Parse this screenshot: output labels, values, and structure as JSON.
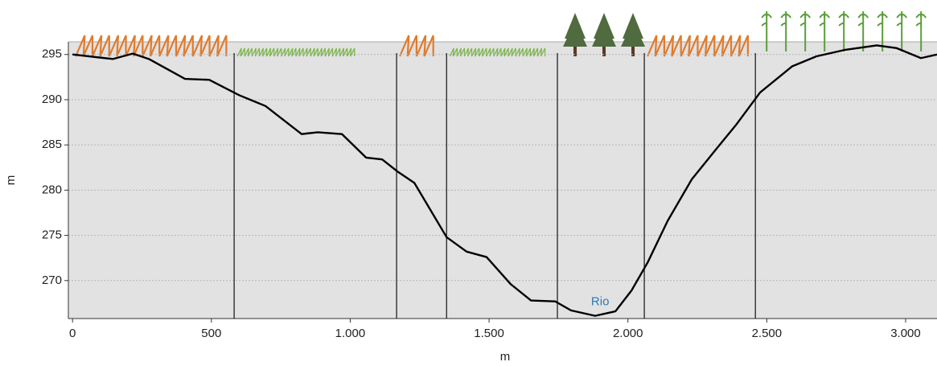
{
  "chart_data": {
    "type": "line",
    "x": [
      0,
      145,
      217,
      275,
      405,
      492,
      600,
      695,
      825,
      883,
      970,
      1057,
      1115,
      1173,
      1231,
      1347,
      1419,
      1491,
      1578,
      1651,
      1738,
      1795,
      1882,
      1955,
      2013,
      2071,
      2143,
      2230,
      2317,
      2389,
      2476,
      2592,
      2679,
      2780,
      2896,
      2968,
      3055,
      3113
    ],
    "series": [
      {
        "color": "#000000",
        "values": [
          295,
          294.5,
          295.1,
          294.5,
          292.3,
          292.2,
          290.5,
          289.3,
          286.2,
          286.4,
          286.2,
          283.6,
          283.4,
          282,
          280.8,
          274.8,
          273.2,
          272.6,
          269.6,
          267.8,
          267.7,
          266.7,
          266.1,
          266.6,
          268.9,
          272,
          276.6,
          281.2,
          284.5,
          287.2,
          290.8,
          293.7,
          294.8,
          295.5,
          296,
          295.7,
          294.6,
          295
        ]
      }
    ],
    "boundaries": [
      582,
      1167,
      1347,
      1746,
      2059,
      2459
    ],
    "annotations": [
      {
        "text": "Rio",
        "x": 1900,
        "y": 267.6,
        "color": "#2a7ab8"
      }
    ],
    "xlabel": "m",
    "ylabel": "m",
    "xlim": [
      -15,
      3113
    ],
    "ylim": [
      265.8,
      296.4
    ],
    "xticks": [
      0,
      500,
      {
        "value": 1000,
        "label": "1.000"
      },
      {
        "value": 1500,
        "label": "1.500"
      },
      {
        "value": 2000,
        "label": "2.000"
      },
      {
        "value": 2500,
        "label": "2.500"
      },
      {
        "value": 3000,
        "label": "3.000"
      }
    ],
    "yticks": [
      270,
      275,
      280,
      285,
      290,
      295
    ],
    "grid": true
  }
}
